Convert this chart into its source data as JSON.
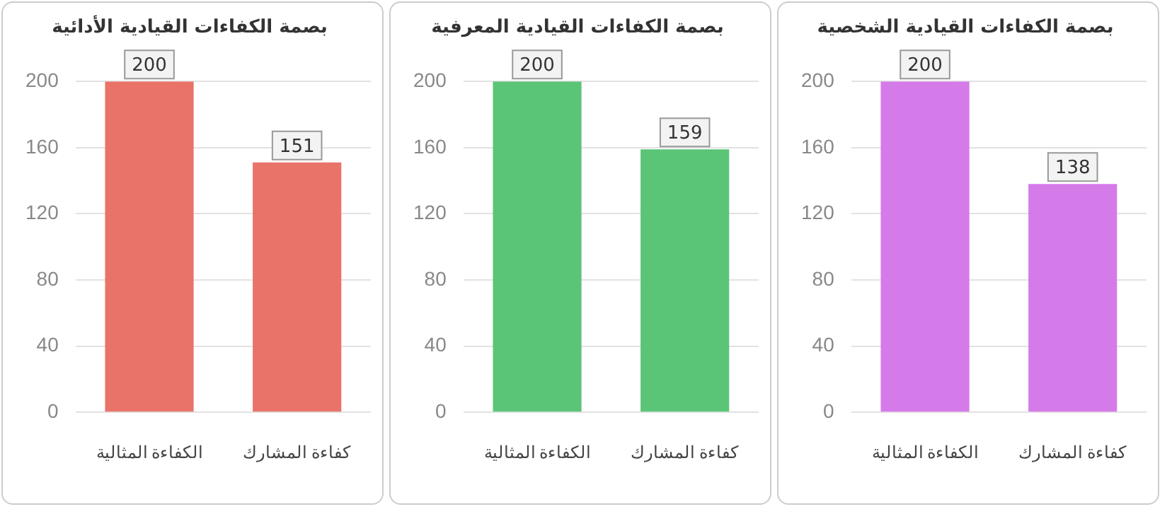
{
  "chart_data": [
    {
      "type": "bar",
      "title": "بصمة الكفاءات القيادية الأدائية",
      "categories": [
        "الكفاءة المثالية",
        "كفاءة المشارك"
      ],
      "values": [
        200,
        151
      ],
      "color": "#ea7369",
      "ylim": [
        0,
        200
      ],
      "yticks": [
        0,
        40,
        80,
        120,
        160,
        200
      ],
      "grid": "y",
      "data_labels": true
    },
    {
      "type": "bar",
      "title": "بصمة الكفاءات القيادية المعرفية",
      "categories": [
        "الكفاءة المثالية",
        "كفاءة المشارك"
      ],
      "values": [
        200,
        159
      ],
      "color": "#5bc577",
      "ylim": [
        0,
        200
      ],
      "yticks": [
        0,
        40,
        80,
        120,
        160,
        200
      ],
      "grid": "y",
      "data_labels": true
    },
    {
      "type": "bar",
      "title": "بصمة الكفاءات القيادية الشخصية",
      "categories": [
        "الكفاءة المثالية",
        "كفاءة المشارك"
      ],
      "values": [
        200,
        138
      ],
      "color": "#d57ae9",
      "ylim": [
        0,
        200
      ],
      "yticks": [
        0,
        40,
        80,
        120,
        160,
        200
      ],
      "grid": "y",
      "data_labels": true
    }
  ]
}
